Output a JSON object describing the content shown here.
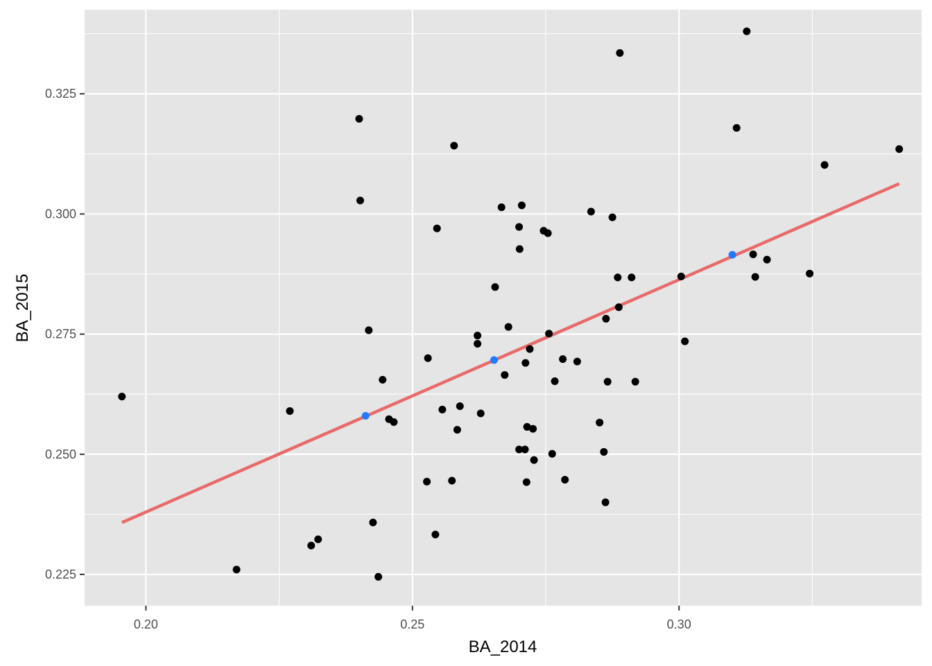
{
  "chart_data": {
    "type": "scatter",
    "title": "",
    "xlabel": "BA_2014",
    "ylabel": "BA_2015",
    "xlim": [
      0.1885,
      0.3455
    ],
    "ylim": [
      0.2185,
      0.3425
    ],
    "x_ticks": [
      "0.20",
      "0.25",
      "0.30"
    ],
    "y_ticks": [
      "0.225",
      "0.250",
      "0.275",
      "0.300",
      "0.325"
    ],
    "grid": true,
    "legend": "none",
    "colors": {
      "panel": "#e5e5e5",
      "grid": "#ffffff",
      "points": "#000000",
      "fit_line": "#e86a6a",
      "highlight": "#1f7bff",
      "tick_text": "#4d4d4d",
      "tick_mark": "#333333"
    },
    "points": [
      [
        0.1955,
        0.262
      ],
      [
        0.217,
        0.226
      ],
      [
        0.227,
        0.259
      ],
      [
        0.231,
        0.231
      ],
      [
        0.2323,
        0.2323
      ],
      [
        0.24,
        0.3198
      ],
      [
        0.2402,
        0.3028
      ],
      [
        0.2418,
        0.2758
      ],
      [
        0.2426,
        0.2358
      ],
      [
        0.2436,
        0.2245
      ],
      [
        0.2444,
        0.2655
      ],
      [
        0.2456,
        0.2573
      ],
      [
        0.2465,
        0.2567
      ],
      [
        0.2527,
        0.2443
      ],
      [
        0.2529,
        0.27
      ],
      [
        0.2543,
        0.2333
      ],
      [
        0.2546,
        0.297
      ],
      [
        0.2556,
        0.2593
      ],
      [
        0.2574,
        0.2445
      ],
      [
        0.2578,
        0.3142
      ],
      [
        0.2584,
        0.2551
      ],
      [
        0.2589,
        0.26
      ],
      [
        0.2622,
        0.2747
      ],
      [
        0.2622,
        0.273
      ],
      [
        0.2628,
        0.2585
      ],
      [
        0.2655,
        0.2848
      ],
      [
        0.2667,
        0.3014
      ],
      [
        0.2673,
        0.2665
      ],
      [
        0.268,
        0.2765
      ],
      [
        0.27,
        0.2973
      ],
      [
        0.2701,
        0.2927
      ],
      [
        0.27,
        0.251
      ],
      [
        0.2705,
        0.3018
      ],
      [
        0.2711,
        0.251
      ],
      [
        0.2712,
        0.269
      ],
      [
        0.2714,
        0.2442
      ],
      [
        0.2715,
        0.2557
      ],
      [
        0.272,
        0.2719
      ],
      [
        0.2726,
        0.2553
      ],
      [
        0.2728,
        0.2488
      ],
      [
        0.2746,
        0.2965
      ],
      [
        0.2754,
        0.296
      ],
      [
        0.2756,
        0.2751
      ],
      [
        0.2762,
        0.2501
      ],
      [
        0.2767,
        0.2652
      ],
      [
        0.2782,
        0.2698
      ],
      [
        0.2786,
        0.2447
      ],
      [
        0.2809,
        0.2693
      ],
      [
        0.2835,
        0.3005
      ],
      [
        0.2851,
        0.2566
      ],
      [
        0.2859,
        0.2505
      ],
      [
        0.2862,
        0.24
      ],
      [
        0.2863,
        0.2782
      ],
      [
        0.2866,
        0.2651
      ],
      [
        0.2875,
        0.2993
      ],
      [
        0.2885,
        0.2868
      ],
      [
        0.2887,
        0.2806
      ],
      [
        0.2889,
        0.3335
      ],
      [
        0.2911,
        0.2868
      ],
      [
        0.2918,
        0.2651
      ],
      [
        0.3004,
        0.287
      ],
      [
        0.3011,
        0.2735
      ],
      [
        0.3108,
        0.3179
      ],
      [
        0.3127,
        0.338
      ],
      [
        0.3139,
        0.2916
      ],
      [
        0.3143,
        0.2869
      ],
      [
        0.3165,
        0.2905
      ],
      [
        0.3245,
        0.2876
      ],
      [
        0.3273,
        0.3102
      ],
      [
        0.3413,
        0.3135
      ]
    ],
    "highlighted_points": [
      [
        0.2412,
        0.258
      ],
      [
        0.2653,
        0.2696
      ],
      [
        0.31,
        0.2915
      ]
    ],
    "fit_line": {
      "x": [
        0.1955,
        0.3413
      ],
      "y": [
        0.2358,
        0.3063
      ]
    }
  }
}
